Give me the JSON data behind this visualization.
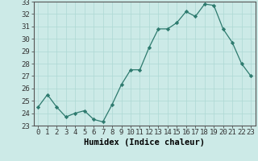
{
  "x": [
    0,
    1,
    2,
    3,
    4,
    5,
    6,
    7,
    8,
    9,
    10,
    11,
    12,
    13,
    14,
    15,
    16,
    17,
    18,
    19,
    20,
    21,
    22,
    23
  ],
  "y": [
    24.5,
    25.5,
    24.5,
    23.7,
    24.0,
    24.2,
    23.5,
    23.3,
    24.7,
    26.3,
    27.5,
    27.5,
    29.3,
    30.8,
    30.8,
    31.3,
    32.2,
    31.8,
    32.8,
    32.7,
    30.8,
    29.7,
    28.0,
    27.0
  ],
  "line_color": "#2d7a6e",
  "marker": "D",
  "marker_size": 2.2,
  "bg_color": "#cceae7",
  "grid_color": "#add8d4",
  "xlabel": "Humidex (Indice chaleur)",
  "ylim": [
    23,
    33
  ],
  "xlim_min": -0.5,
  "xlim_max": 23.5,
  "yticks": [
    23,
    24,
    25,
    26,
    27,
    28,
    29,
    30,
    31,
    32,
    33
  ],
  "xtick_labels": [
    "0",
    "1",
    "2",
    "3",
    "4",
    "5",
    "6",
    "7",
    "8",
    "9",
    "10",
    "11",
    "12",
    "13",
    "14",
    "15",
    "16",
    "17",
    "18",
    "19",
    "20",
    "21",
    "22",
    "23"
  ],
  "tick_fontsize": 6.5,
  "xlabel_fontsize": 7.5
}
